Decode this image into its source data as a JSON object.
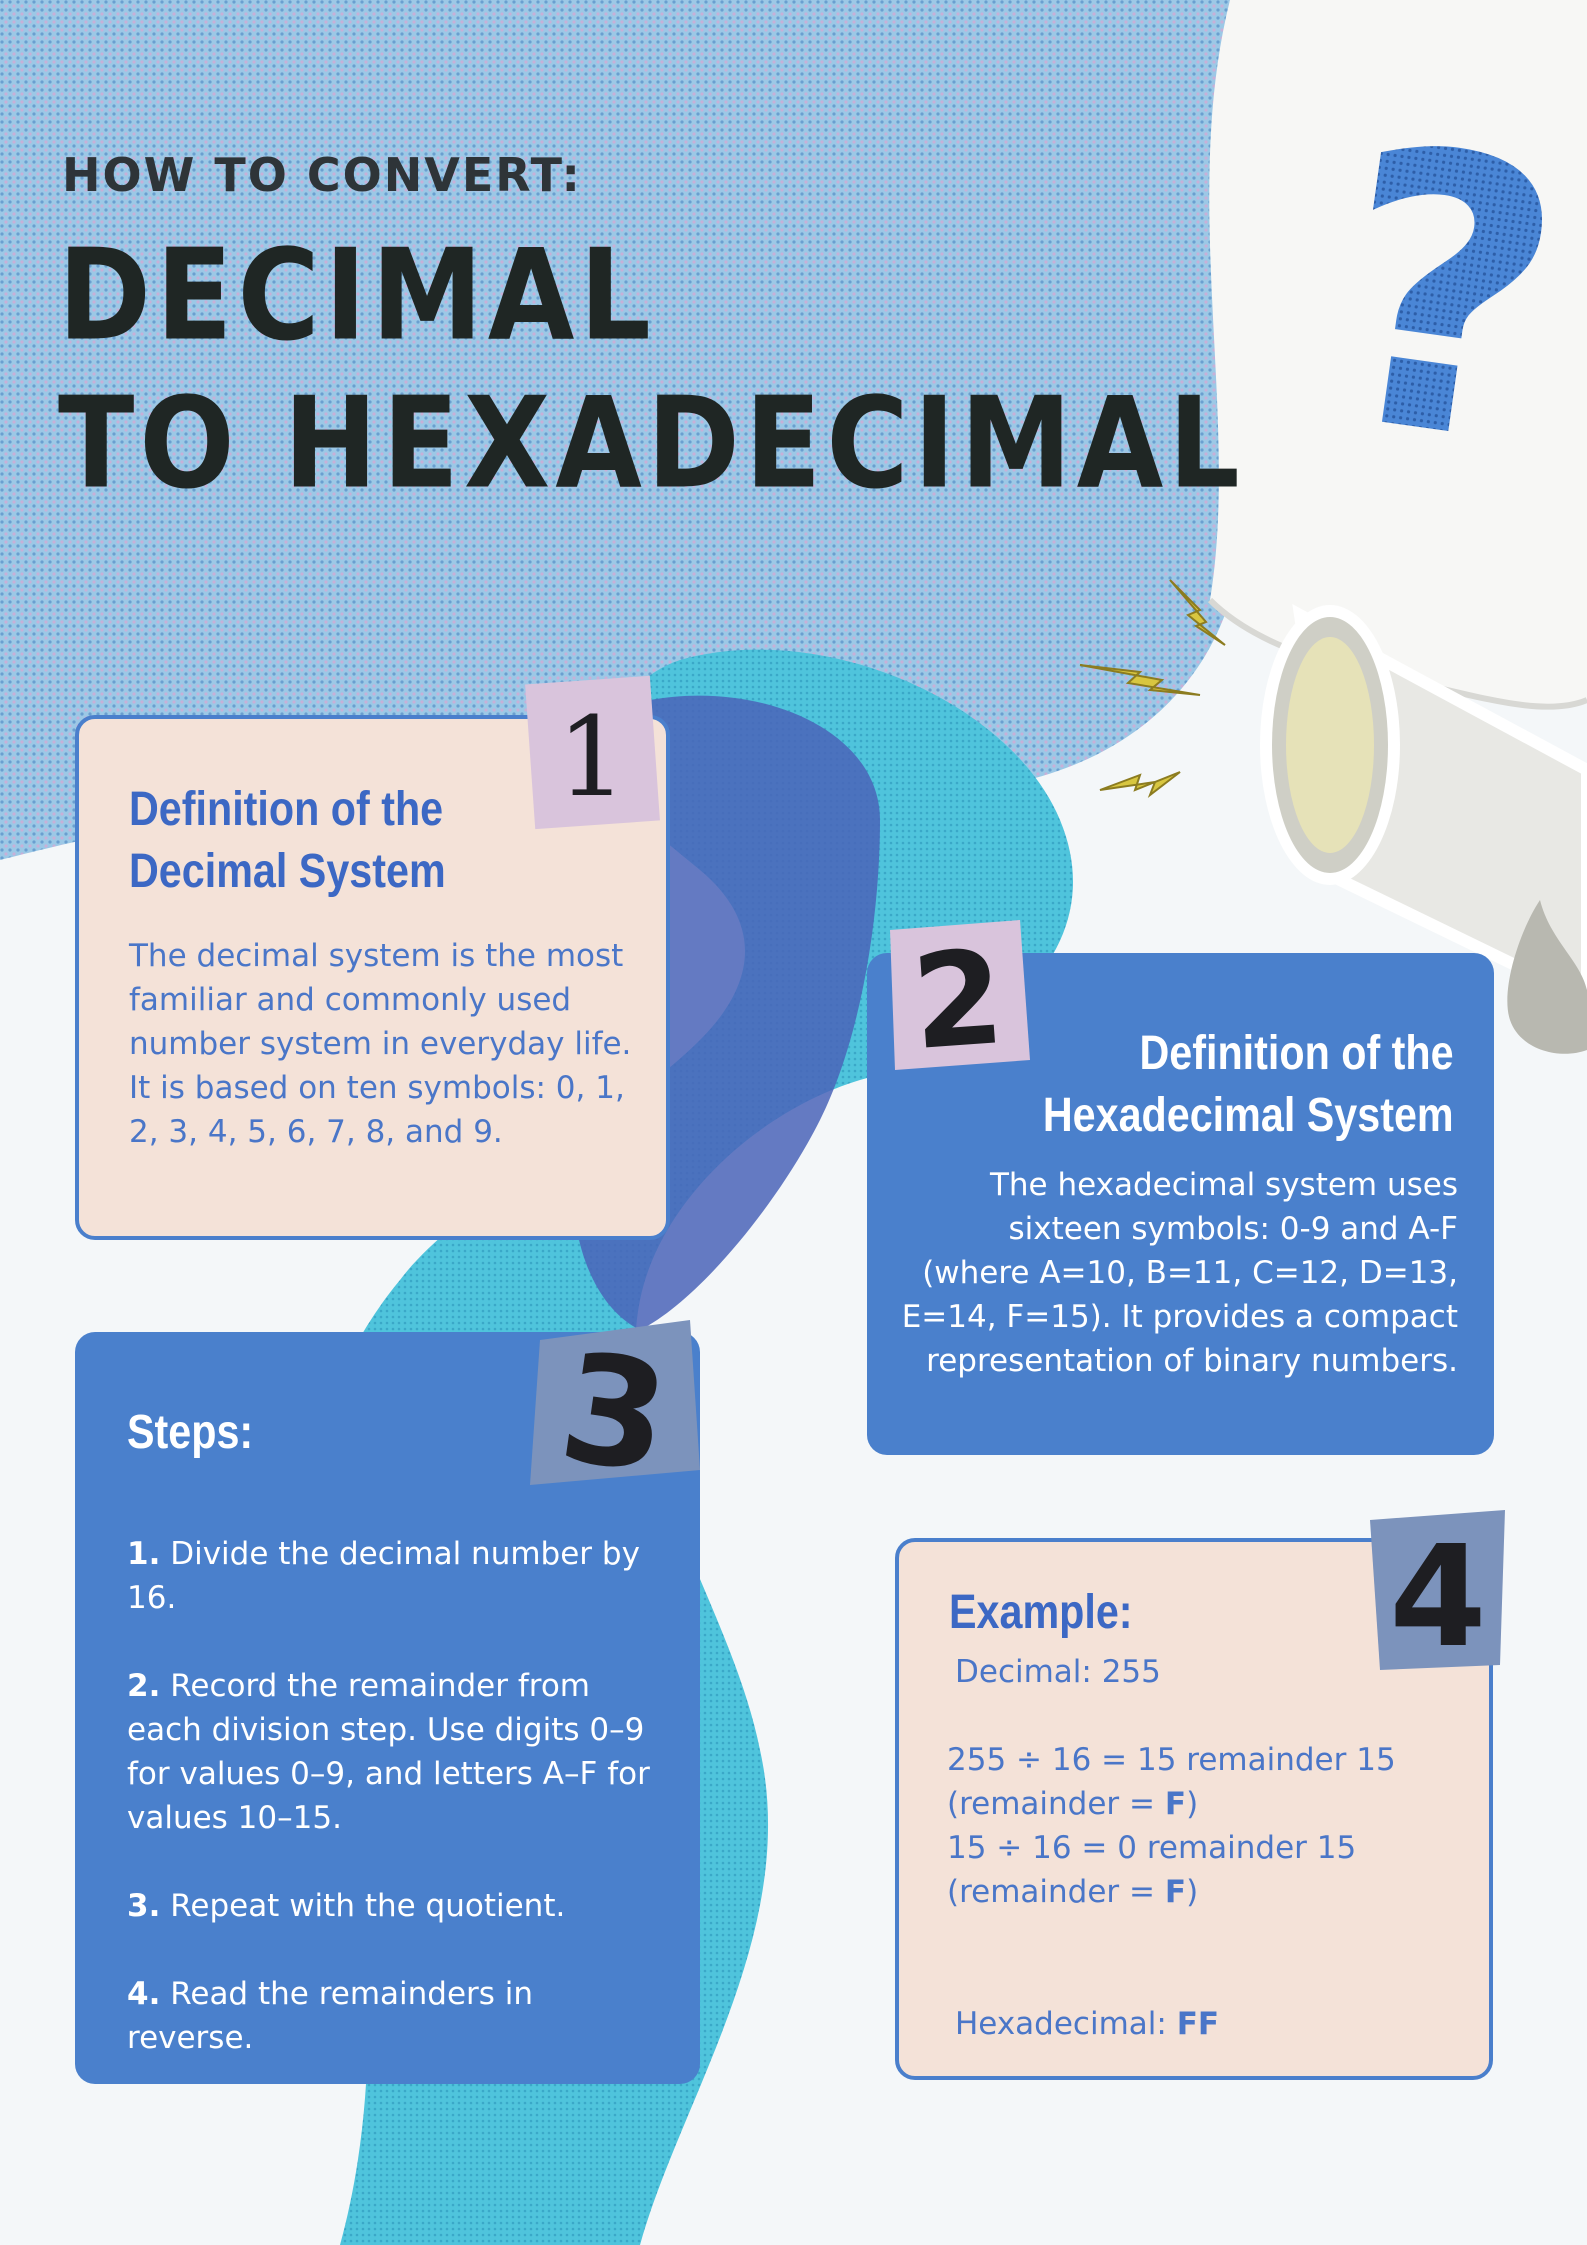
{
  "header": {
    "eyebrow": "HOW TO CONVERT:",
    "title_line1": "DECIMAL",
    "title_line2": "TO HEXADECIMAL"
  },
  "badges": [
    "1",
    "2",
    "3",
    "4"
  ],
  "card1": {
    "title_line1": "Definition of the",
    "title_line2": "Decimal System",
    "body": "The decimal system is the most familiar and commonly used number system in everyday life. It is based on ten symbols: 0, 1, 2, 3, 4, 5, 6, 7, 8, and 9."
  },
  "card2": {
    "title_line1": "Definition of the",
    "title_line2": "Hexadecimal System",
    "body": "The hexadecimal system uses sixteen symbols: 0-9 and A-F (where A=10, B=11, C=12, D=13, E=14, F=15). It provides a compact representation of binary numbers."
  },
  "card3": {
    "title": "Steps:",
    "steps": [
      {
        "num": "1.",
        "text": "Divide the decimal number by 16."
      },
      {
        "num": "2.",
        "text": "Record the remainder from each division step. Use digits 0–9 for values 0–9, and letters A–F for values 10–15."
      },
      {
        "num": "3.",
        "text": "Repeat with the quotient."
      },
      {
        "num": "4.",
        "text": "Read the remainders in reverse."
      }
    ]
  },
  "card4": {
    "title": "Example:",
    "decimal_line": "Decimal: 255",
    "line1": "255 ÷ 16 = 15 remainder 15",
    "line2_prefix": "(remainder = ",
    "line2_value": "F",
    "line2_suffix": ")",
    "line3": "15 ÷ 16 = 0 remainder 15",
    "line4_prefix": "(remainder = ",
    "line4_value": "F",
    "line4_suffix": ")",
    "result_label": "Hexadecimal: ",
    "result_value": "FF"
  },
  "decorations": {
    "question_mark": "?",
    "megaphone": "megaphone-icon",
    "lightning": "lightning-icon"
  },
  "colors": {
    "accent_blue": "#4a80cc",
    "card_peach": "#f4e2d8",
    "title_dark": "#1f2624",
    "bg_blue": "#8fbfe0",
    "cyan": "#4fc4dc"
  }
}
